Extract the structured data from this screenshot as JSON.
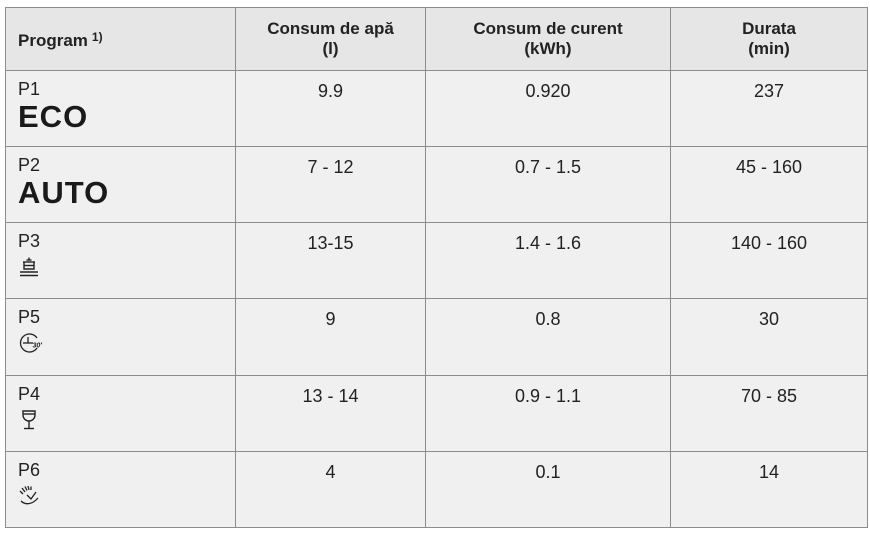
{
  "header": {
    "program": "Program",
    "program_note": "1)",
    "water_line1": "Consum de apă",
    "water_line2": "(l)",
    "power_line1": "Consum de curent",
    "power_line2": "(kWh)",
    "duration_line1": "Durata",
    "duration_line2": "(min)"
  },
  "rows": [
    {
      "code": "P1",
      "name": "ECO",
      "icon": "",
      "water": "9.9",
      "power": "0.920",
      "duration": "237"
    },
    {
      "code": "P2",
      "name": "AUTO",
      "icon": "",
      "water": "7 - 12",
      "power": "0.7 - 1.5",
      "duration": "45 - 160"
    },
    {
      "code": "P3",
      "name": "",
      "icon": "pots-pans-icon",
      "water": "13-15",
      "power": "1.4 - 1.6",
      "duration": "140 - 160"
    },
    {
      "code": "P5",
      "name": "",
      "icon": "quick-30-icon",
      "water": "9",
      "power": "0.8",
      "duration": "30"
    },
    {
      "code": "P4",
      "name": "",
      "icon": "wine-glass-icon",
      "water": "13 - 14",
      "power": "0.9 - 1.1",
      "duration": "70 - 85"
    },
    {
      "code": "P6",
      "name": "",
      "icon": "rinse-icon",
      "water": "4",
      "power": "0.1",
      "duration": "14"
    }
  ],
  "colors": {
    "header_bg": "#e6e6e6",
    "row_bg": "#f0f0f0",
    "border": "#8c8c8c"
  }
}
